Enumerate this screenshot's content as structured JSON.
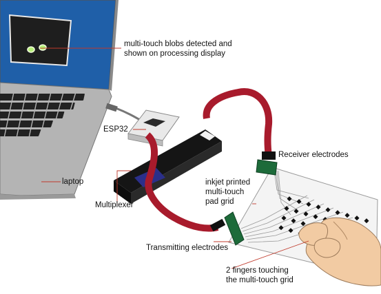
{
  "labels": {
    "blobs_line1": "multi-touch blobs detected and",
    "blobs_line2": "shown on processing display",
    "esp32": "ESP32",
    "receiver": "Receiver electrodes",
    "laptop": "laptop",
    "inkjet_line1": "inkjet printed",
    "inkjet_line2": "multi-touch",
    "inkjet_line3": "pad grid",
    "multiplexer": "Multiplexer",
    "transmitting": "Transmitting electrodes",
    "fingers_line1": "2 fingers touching",
    "fingers_line2": "the multi-touch grid"
  },
  "colors": {
    "laptop_screen": "#1f5fa8",
    "laptop_body": "#b4b4b4",
    "display_bg": "#1e1e1e",
    "blob": "#b7f07a",
    "ribbon_cable": "#a81b2c",
    "multiplexer_board": "#151515",
    "multiplexer_chip": "#2b2f8a",
    "esp32_board": "#e9e9e9",
    "electrode_connector": "#1d6b3a",
    "callout_line": "#c0392b",
    "skin": "#f2cba3"
  }
}
